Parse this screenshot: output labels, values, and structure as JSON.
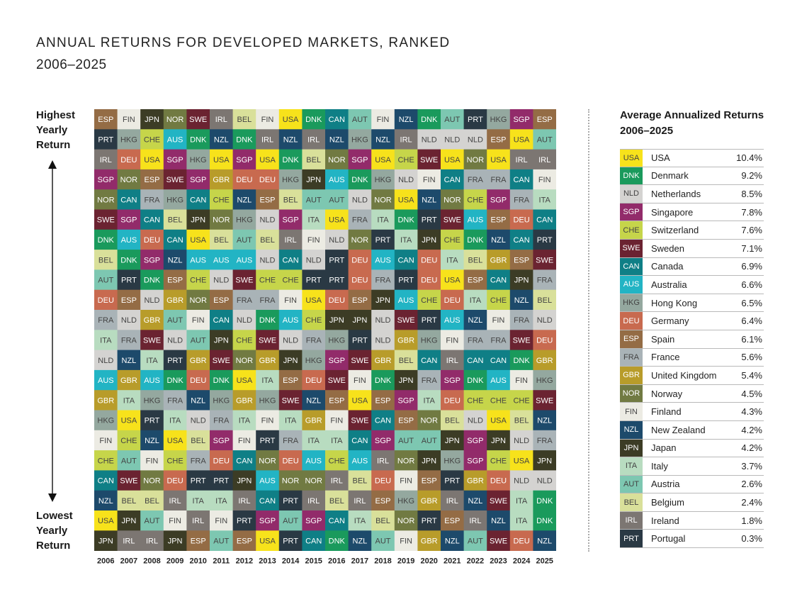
{
  "title": "ANNUAL RETURNS FOR DEVELOPED MARKETS, RANKED",
  "subtitle": "2006–2025",
  "axis": {
    "top": [
      "Highest",
      "Yearly",
      "Return"
    ],
    "bottom": [
      "Lowest",
      "Yearly",
      "Return"
    ]
  },
  "legend": {
    "title": [
      "Average Annualized Returns",
      "2006–2025"
    ],
    "items": [
      {
        "code": "USA",
        "name": "USA",
        "value": "10.4%"
      },
      {
        "code": "DNK",
        "name": "Denmark",
        "value": "9.2%"
      },
      {
        "code": "NLD",
        "name": "Netherlands",
        "value": "8.5%"
      },
      {
        "code": "SGP",
        "name": "Singapore",
        "value": "7.8%"
      },
      {
        "code": "CHE",
        "name": "Switzerland",
        "value": "7.6%"
      },
      {
        "code": "SWE",
        "name": "Sweden",
        "value": "7.1%"
      },
      {
        "code": "CAN",
        "name": "Canada",
        "value": "6.9%"
      },
      {
        "code": "AUS",
        "name": "Australia",
        "value": "6.6%"
      },
      {
        "code": "HKG",
        "name": "Hong Kong",
        "value": "6.5%"
      },
      {
        "code": "DEU",
        "name": "Germany",
        "value": "6.4%"
      },
      {
        "code": "ESP",
        "name": "Spain",
        "value": "6.1%"
      },
      {
        "code": "FRA",
        "name": "France",
        "value": "5.6%"
      },
      {
        "code": "GBR",
        "name": "United Kingdom",
        "value": "5.4%"
      },
      {
        "code": "NOR",
        "name": "Norway",
        "value": "4.5%"
      },
      {
        "code": "FIN",
        "name": "Finland",
        "value": "4.3%"
      },
      {
        "code": "NZL",
        "name": "New Zealand",
        "value": "4.2%"
      },
      {
        "code": "JPN",
        "name": "Japan",
        "value": "4.2%"
      },
      {
        "code": "ITA",
        "name": "Italy",
        "value": "3.7%"
      },
      {
        "code": "AUT",
        "name": "Austria",
        "value": "2.6%"
      },
      {
        "code": "BEL",
        "name": "Belgium",
        "value": "2.4%"
      },
      {
        "code": "IRL",
        "name": "Ireland",
        "value": "1.8%"
      },
      {
        "code": "PRT",
        "name": "Portugal",
        "value": "0.3%"
      }
    ]
  },
  "colors": {
    "USA": "#f7e21b",
    "DNK": "#1a9a5c",
    "NLD": "#d4d3d1",
    "SGP": "#922b6a",
    "CHE": "#c6d54a",
    "SWE": "#6b2331",
    "CAN": "#0f7f86",
    "AUS": "#22b4c4",
    "HKG": "#94a89f",
    "DEU": "#c86a4f",
    "ESP": "#946c45",
    "FRA": "#a9b3b7",
    "GBR": "#b89c2a",
    "NOR": "#717a42",
    "FIN": "#ecebe3",
    "NZL": "#1d4a6b",
    "JPN": "#3c3c25",
    "ITA": "#b8dcc0",
    "AUT": "#7dc7b1",
    "BEL": "#d9e09a",
    "IRL": "#7c7672",
    "PRT": "#2a3944"
  },
  "light_text_codes": [
    "USA",
    "NLD",
    "CHE",
    "HKG",
    "FRA",
    "FIN",
    "ITA",
    "AUT",
    "BEL"
  ],
  "chart_data": {
    "type": "table",
    "title": "ANNUAL RETURNS FOR DEVELOPED MARKETS, RANKED",
    "subtitle": "2006–2025",
    "years": [
      "2006",
      "2007",
      "2008",
      "2009",
      "2010",
      "2011",
      "2012",
      "2013",
      "2014",
      "2015",
      "2016",
      "2017",
      "2018",
      "2019",
      "2020",
      "2021",
      "2022",
      "2023",
      "2024",
      "2025"
    ],
    "rankings": [
      [
        "ESP",
        "PRT",
        "IRL",
        "SGP",
        "NOR",
        "SWE",
        "DNK",
        "BEL",
        "AUT",
        "DEU",
        "FRA",
        "ITA",
        "NLD",
        "AUS",
        "GBR",
        "HKG",
        "FIN",
        "CHE",
        "CAN",
        "NZL",
        "USA",
        "JPN"
      ],
      [
        "FIN",
        "HKG",
        "DEU",
        "NOR",
        "CAN",
        "SGP",
        "AUS",
        "DNK",
        "PRT",
        "ESP",
        "NLD",
        "FRA",
        "NZL",
        "GBR",
        "ITA",
        "USA",
        "CHE",
        "AUT",
        "SWE",
        "BEL",
        "JPN",
        "IRL"
      ],
      [
        "JPN",
        "CHE",
        "USA",
        "ESP",
        "FRA",
        "CAN",
        "DEU",
        "SGP",
        "DNK",
        "NLD",
        "GBR",
        "SWE",
        "ITA",
        "AUS",
        "HKG",
        "PRT",
        "NZL",
        "FIN",
        "NOR",
        "BEL",
        "AUT",
        "IRL"
      ],
      [
        "NOR",
        "AUS",
        "SGP",
        "SWE",
        "HKG",
        "BEL",
        "CAN",
        "NZL",
        "ESP",
        "GBR",
        "AUT",
        "NLD",
        "PRT",
        "DNK",
        "FRA",
        "ITA",
        "USA",
        "CHE",
        "DEU",
        "IRL",
        "FIN",
        "JPN"
      ],
      [
        "SWE",
        "DNK",
        "HKG",
        "SGP",
        "CAN",
        "JPN",
        "USA",
        "AUS",
        "CHE",
        "NOR",
        "FIN",
        "AUT",
        "GBR",
        "DEU",
        "NZL",
        "NLD",
        "BEL",
        "FRA",
        "PRT",
        "ITA",
        "IRL",
        "ESP"
      ],
      [
        "IRL",
        "NZL",
        "USA",
        "GBR",
        "CHE",
        "NOR",
        "BEL",
        "AUS",
        "NLD",
        "ESP",
        "CAN",
        "JPN",
        "SWE",
        "DNK",
        "HKG",
        "FRA",
        "SGP",
        "DEU",
        "PRT",
        "ITA",
        "FIN",
        "AUT"
      ],
      [
        "BEL",
        "DNK",
        "SGP",
        "DEU",
        "NZL",
        "HKG",
        "AUT",
        "AUS",
        "SWE",
        "FRA",
        "NLD",
        "CHE",
        "NOR",
        "USA",
        "GBR",
        "ITA",
        "FIN",
        "CAN",
        "JPN",
        "IRL",
        "PRT",
        "ESP"
      ],
      [
        "FIN",
        "IRL",
        "USA",
        "DEU",
        "ESP",
        "NLD",
        "BEL",
        "NLD",
        "CHE",
        "FRA",
        "DNK",
        "SWE",
        "GBR",
        "ITA",
        "HKG",
        "FIN",
        "PRT",
        "NOR",
        "AUS",
        "CAN",
        "SGP",
        "USA"
      ],
      [
        "USA",
        "NZL",
        "DNK",
        "HKG",
        "BEL",
        "SGP",
        "IRL",
        "CAN",
        "CHE",
        "FIN",
        "AUS",
        "NLD",
        "JPN",
        "ESP",
        "SWE",
        "ITA",
        "FRA",
        "DEU",
        "NOR",
        "PRT",
        "AUT",
        "PRT"
      ],
      [
        "DNK",
        "IRL",
        "BEL",
        "JPN",
        "AUT",
        "ITA",
        "FIN",
        "NLD",
        "PRT",
        "USA",
        "CHE",
        "FRA",
        "HKG",
        "DEU",
        "NZL",
        "GBR",
        "ITA",
        "AUS",
        "NOR",
        "IRL",
        "SGP",
        "CAN"
      ],
      [
        "CAN",
        "NZL",
        "NOR",
        "AUS",
        "AUT",
        "USA",
        "NLD",
        "PRT",
        "PRT",
        "DEU",
        "JPN",
        "HKG",
        "SGP",
        "SWE",
        "ESP",
        "FIN",
        "ITA",
        "CHE",
        "IRL",
        "BEL",
        "CAN",
        "DNK"
      ],
      [
        "AUT",
        "HKG",
        "SGP",
        "DNK",
        "NLD",
        "FRA",
        "NOR",
        "DEU",
        "DEU",
        "ESP",
        "JPN",
        "PRT",
        "SWE",
        "FIN",
        "USA",
        "SWE",
        "CAN",
        "AUS",
        "BEL",
        "IRL",
        "ITA",
        "NZL"
      ],
      [
        "FIN",
        "NZL",
        "USA",
        "HKG",
        "NOR",
        "ITA",
        "PRT",
        "AUS",
        "FRA",
        "JPN",
        "NLD",
        "NLD",
        "GBR",
        "DNK",
        "ESP",
        "CAN",
        "SGP",
        "IRL",
        "DEU",
        "ESP",
        "BEL",
        "AUT"
      ],
      [
        "NZL",
        "IRL",
        "CHE",
        "NLD",
        "USA",
        "DNK",
        "ITA",
        "CAN",
        "PRT",
        "AUS",
        "SWE",
        "GBR",
        "BEL",
        "JPN",
        "SGP",
        "ESP",
        "AUT",
        "NOR",
        "FIN",
        "HKG",
        "NOR",
        "FIN"
      ],
      [
        "DNK",
        "NLD",
        "SWE",
        "FIN",
        "NZL",
        "PRT",
        "JPN",
        "DEU",
        "DEU",
        "CHE",
        "PRT",
        "HKG",
        "CAN",
        "FRA",
        "ITA",
        "NOR",
        "AUT",
        "JPN",
        "ESP",
        "GBR",
        "PRT",
        "GBR"
      ],
      [
        "AUT",
        "NLD",
        "USA",
        "CAN",
        "NOR",
        "SWE",
        "CHE",
        "ITA",
        "USA",
        "DEU",
        "AUS",
        "FIN",
        "IRL",
        "SGP",
        "DEU",
        "BEL",
        "JPN",
        "HKG",
        "PRT",
        "IRL",
        "ESP",
        "NZL"
      ],
      [
        "PRT",
        "NLD",
        "NOR",
        "FRA",
        "CHE",
        "AUS",
        "DNK",
        "BEL",
        "ESP",
        "ITA",
        "NZL",
        "FRA",
        "CAN",
        "DNK",
        "CHE",
        "NLD",
        "SGP",
        "SGP",
        "GBR",
        "NZL",
        "IRL",
        "AUT"
      ],
      [
        "HKG",
        "ESP",
        "USA",
        "FRA",
        "SGP",
        "ESP",
        "NZL",
        "GBR",
        "CAN",
        "CHE",
        "FIN",
        "FRA",
        "CAN",
        "AUS",
        "CHE",
        "USA",
        "JPN",
        "CHE",
        "DEU",
        "SWE",
        "NZL",
        "SWE"
      ],
      [
        "SGP",
        "USA",
        "IRL",
        "CAN",
        "FRA",
        "DEU",
        "CAN",
        "ESP",
        "JPN",
        "NZL",
        "FRA",
        "SWE",
        "DNK",
        "FIN",
        "CHE",
        "BEL",
        "NLD",
        "USA",
        "NLD",
        "ITA",
        "ITA",
        "DEU"
      ],
      [
        "ESP",
        "AUT",
        "IRL",
        "FIN",
        "ITA",
        "CAN",
        "PRT",
        "SWE",
        "FRA",
        "BEL",
        "NLD",
        "DEU",
        "GBR",
        "HKG",
        "SWE",
        "NZL",
        "FRA",
        "JPN",
        "NLD",
        "DNK",
        "DNK",
        "NZL"
      ]
    ],
    "ranking_note": "Each inner array lists the 22 markets for one year, ordered from highest yearly return (first) to lowest (last)."
  }
}
